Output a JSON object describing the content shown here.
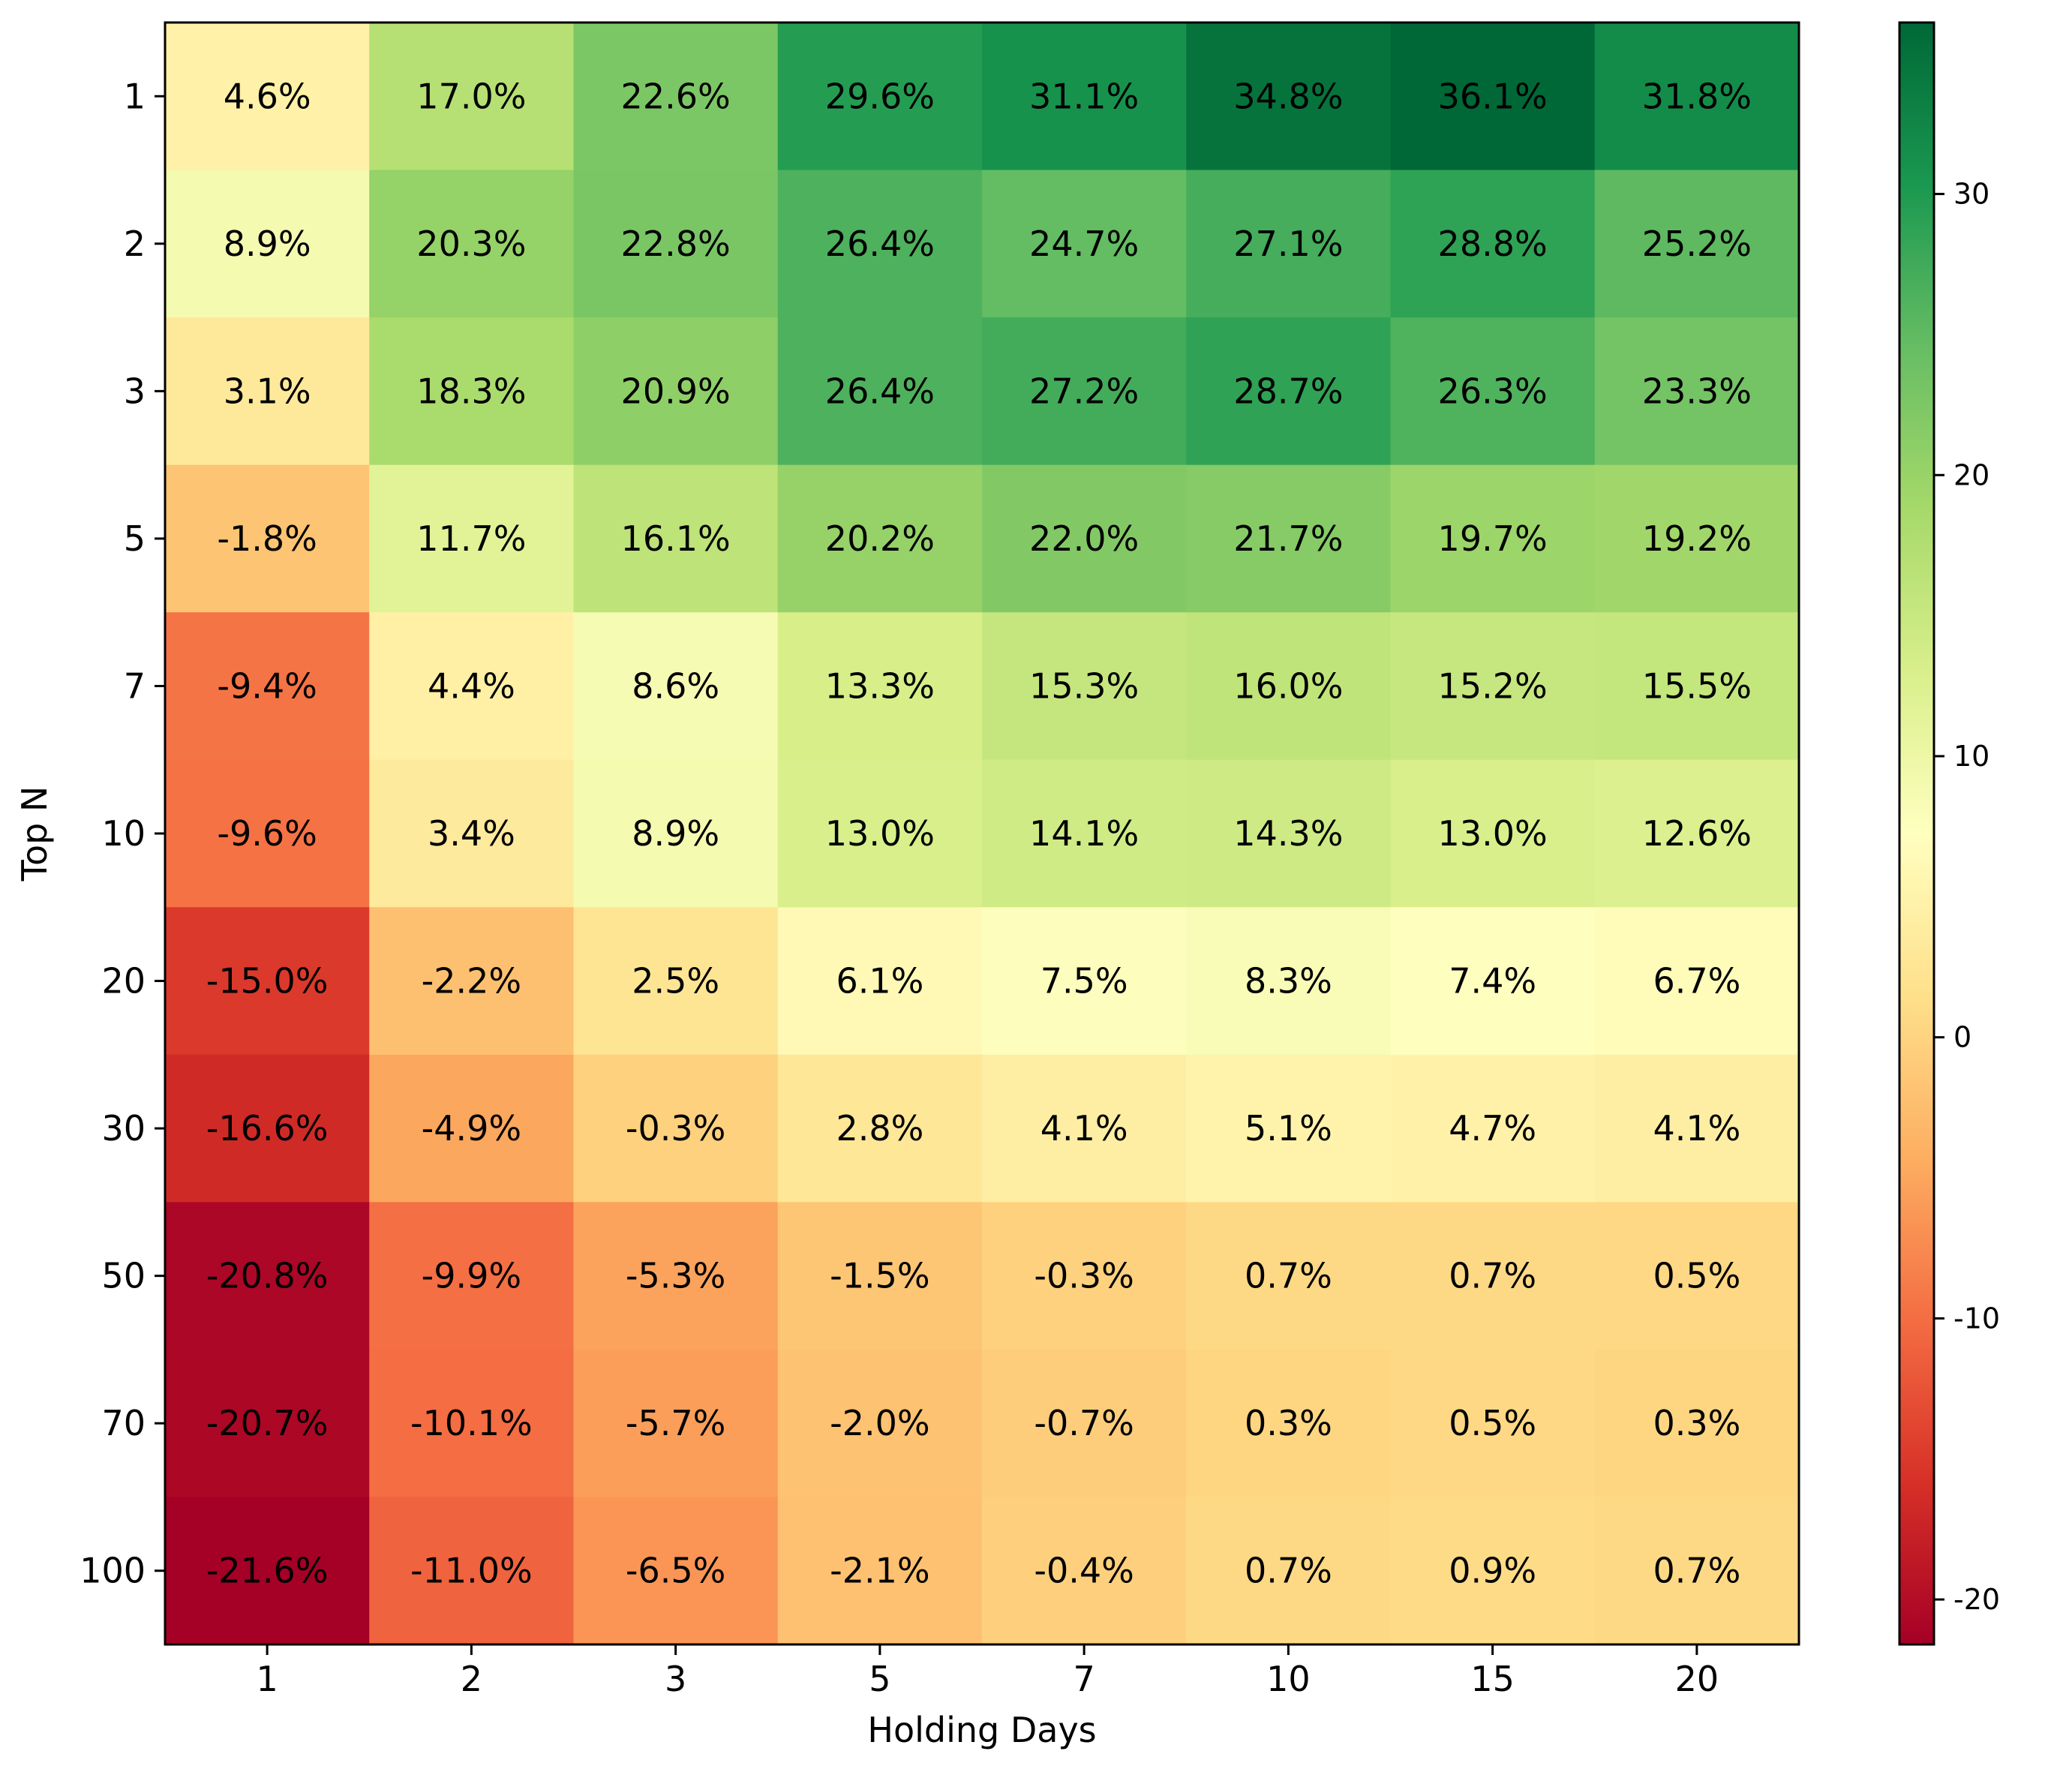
{
  "chart_data": {
    "type": "heatmap",
    "title": "",
    "xlabel": "Holding Days",
    "ylabel": "Top N",
    "x_categories": [
      "1",
      "2",
      "3",
      "5",
      "7",
      "10",
      "15",
      "20"
    ],
    "y_categories": [
      "1",
      "2",
      "3",
      "5",
      "7",
      "10",
      "20",
      "30",
      "50",
      "70",
      "100"
    ],
    "values": [
      [
        4.6,
        17.0,
        22.6,
        29.6,
        31.1,
        34.8,
        36.1,
        31.8
      ],
      [
        8.9,
        20.3,
        22.8,
        26.4,
        24.7,
        27.1,
        28.8,
        25.2
      ],
      [
        3.1,
        18.3,
        20.9,
        26.4,
        27.2,
        28.7,
        26.3,
        23.3
      ],
      [
        -1.8,
        11.7,
        16.1,
        20.2,
        22.0,
        21.7,
        19.7,
        19.2
      ],
      [
        -9.4,
        4.4,
        8.6,
        13.3,
        15.3,
        16.0,
        15.2,
        15.5
      ],
      [
        -9.6,
        3.4,
        8.9,
        13.0,
        14.1,
        14.3,
        13.0,
        12.6
      ],
      [
        -15.0,
        -2.2,
        2.5,
        6.1,
        7.5,
        8.3,
        7.4,
        6.7
      ],
      [
        -16.6,
        -4.9,
        -0.3,
        2.8,
        4.1,
        5.1,
        4.7,
        4.1
      ],
      [
        -20.8,
        -9.9,
        -5.3,
        -1.5,
        -0.3,
        0.7,
        0.7,
        0.5
      ],
      [
        -20.7,
        -10.1,
        -5.7,
        -2.0,
        -0.7,
        0.3,
        0.5,
        0.3
      ],
      [
        -21.6,
        -11.0,
        -6.5,
        -2.1,
        -0.4,
        0.7,
        0.9,
        0.7
      ]
    ],
    "cell_labels": [
      [
        "4.6%",
        "17.0%",
        "22.6%",
        "29.6%",
        "31.1%",
        "34.8%",
        "36.1%",
        "31.8%"
      ],
      [
        "8.9%",
        "20.3%",
        "22.8%",
        "26.4%",
        "24.7%",
        "27.1%",
        "28.8%",
        "25.2%"
      ],
      [
        "3.1%",
        "18.3%",
        "20.9%",
        "26.4%",
        "27.2%",
        "28.7%",
        "26.3%",
        "23.3%"
      ],
      [
        "-1.8%",
        "11.7%",
        "16.1%",
        "20.2%",
        "22.0%",
        "21.7%",
        "19.7%",
        "19.2%"
      ],
      [
        "-9.4%",
        "4.4%",
        "8.6%",
        "13.3%",
        "15.3%",
        "16.0%",
        "15.2%",
        "15.5%"
      ],
      [
        "-9.6%",
        "3.4%",
        "8.9%",
        "13.0%",
        "14.1%",
        "14.3%",
        "13.0%",
        "12.6%"
      ],
      [
        "-15.0%",
        "-2.2%",
        "2.5%",
        "6.1%",
        "7.5%",
        "8.3%",
        "7.4%",
        "6.7%"
      ],
      [
        "-16.6%",
        "-4.9%",
        "-0.3%",
        "2.8%",
        "4.1%",
        "5.1%",
        "4.7%",
        "4.1%"
      ],
      [
        "-20.8%",
        "-9.9%",
        "-5.3%",
        "-1.5%",
        "-0.3%",
        "0.7%",
        "0.7%",
        "0.5%"
      ],
      [
        "-20.7%",
        "-10.1%",
        "-5.7%",
        "-2.0%",
        "-0.7%",
        "0.3%",
        "0.5%",
        "0.3%"
      ],
      [
        "-21.6%",
        "-11.0%",
        "-6.5%",
        "-2.1%",
        "-0.4%",
        "0.7%",
        "0.9%",
        "0.7%"
      ]
    ],
    "colormap": "RdYlGn",
    "value_range": [
      -21.6,
      36.1
    ],
    "colorbar_ticks": [
      30,
      20,
      10,
      0,
      -10,
      -20
    ],
    "colorbar_tick_labels": [
      "30",
      "20",
      "10",
      "0",
      "-10",
      "-20"
    ],
    "grid": false
  }
}
